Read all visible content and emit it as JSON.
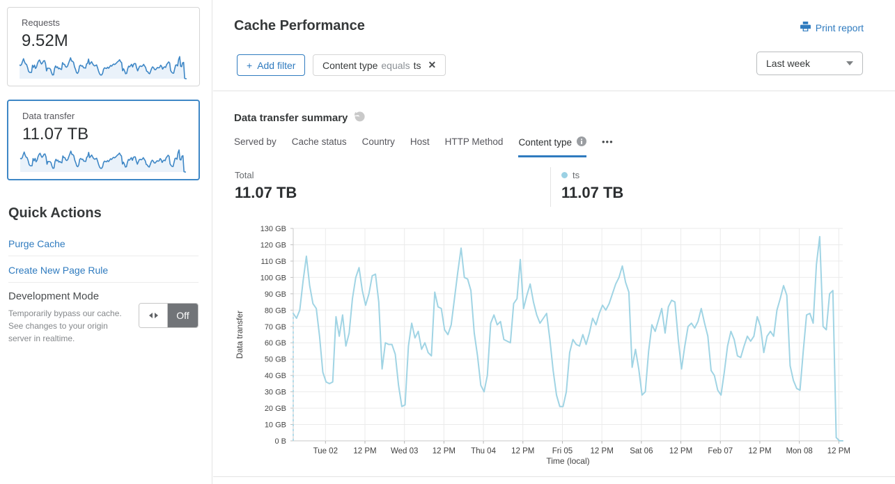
{
  "sidebar": {
    "requests_card": {
      "label": "Requests",
      "value": "9.52M"
    },
    "data_transfer_card": {
      "label": "Data transfer",
      "value": "11.07 TB"
    },
    "quick_actions": {
      "title": "Quick Actions",
      "links": [
        "Purge Cache",
        "Create New Page Rule"
      ],
      "development_mode": {
        "label": "Development Mode",
        "description": "Temporarily bypass our cache. See changes to your origin server in realtime.",
        "toggle_state": "Off"
      }
    }
  },
  "header": {
    "title": "Cache Performance",
    "print_report_label": "Print report",
    "add_filter_plus": "+",
    "add_filter_label": "Add filter",
    "filter_chip": {
      "field": "Content type",
      "operator": "equals",
      "value": "ts",
      "close_icon": "✕"
    },
    "time_range_value": "Last week"
  },
  "summary": {
    "title": "Data transfer summary",
    "tabs": [
      "Served by",
      "Cache status",
      "Country",
      "Host",
      "HTTP Method",
      "Content type"
    ],
    "active_tab": "Content type",
    "more_icon": "•••",
    "total_label": "Total",
    "total_value": "11.07 TB",
    "legend": {
      "name": "ts",
      "value": "11.07 TB",
      "color": "#9bd1e4"
    }
  },
  "colors": {
    "accent_blue": "#2f7bbf",
    "chart_line": "#a0d4e4",
    "sparkline": "#3e87c6",
    "selected_card_border": "#3e87c6"
  },
  "chart_data": {
    "type": "line",
    "title": "Data transfer summary",
    "xlabel": "Time (local)",
    "ylabel": "Data transfer",
    "ylim": [
      0,
      130
    ],
    "y_unit": "GB",
    "grid": true,
    "start_dashed": true,
    "legend_position": "top",
    "y_tick_labels": [
      "0 B",
      "10 GB",
      "20 GB",
      "30 GB",
      "40 GB",
      "50 GB",
      "60 GB",
      "70 GB",
      "80 GB",
      "90 GB",
      "100 GB",
      "110 GB",
      "120 GB",
      "130 GB"
    ],
    "x_tick_labels": [
      "Tue 02",
      "12 PM",
      "Wed 03",
      "12 PM",
      "Thu 04",
      "12 PM",
      "Fri 05",
      "12 PM",
      "Sat 06",
      "12 PM",
      "Feb 07",
      "12 PM",
      "Mon 08",
      "12 PM"
    ],
    "x_tick_indices": [
      9.8,
      21.8,
      33.8,
      45.8,
      57.8,
      69.8,
      81.8,
      93.8,
      105.8,
      117.8,
      129.8,
      141.8,
      153.8,
      165.8
    ],
    "series": [
      {
        "name": "ts",
        "color": "#a0d4e4",
        "unit": "GB",
        "values": [
          78,
          75,
          80,
          98,
          113,
          95,
          84,
          81,
          64,
          42,
          36,
          35,
          36,
          76,
          64,
          77,
          58,
          66,
          87,
          100,
          106,
          92,
          83,
          90,
          101,
          102,
          85,
          44,
          60,
          59,
          59,
          53,
          34,
          21,
          22,
          58,
          72,
          63,
          67,
          56,
          60,
          54,
          52,
          91,
          82,
          81,
          68,
          65,
          71,
          87,
          103,
          118,
          100,
          99,
          92,
          66,
          52,
          34,
          30,
          40,
          72,
          77,
          71,
          73,
          62,
          61,
          60,
          84,
          87,
          111,
          81,
          89,
          96,
          85,
          77,
          72,
          75,
          78,
          62,
          43,
          28,
          21,
          21,
          30,
          54,
          62,
          59,
          58,
          65,
          59,
          66,
          75,
          71,
          78,
          83,
          80,
          84,
          90,
          96,
          100,
          107,
          97,
          91,
          45,
          56,
          44,
          28,
          30,
          55,
          71,
          67,
          74,
          81,
          66,
          82,
          86,
          85,
          62,
          44,
          58,
          70,
          72,
          69,
          73,
          81,
          72,
          64,
          43,
          40,
          31,
          28,
          42,
          58,
          67,
          62,
          52,
          51,
          58,
          64,
          61,
          64,
          76,
          70,
          54,
          64,
          67,
          64,
          80,
          87,
          95,
          89,
          46,
          37,
          32,
          31,
          55,
          77,
          78,
          72,
          108,
          125,
          70,
          68,
          90,
          92,
          2,
          0,
          0
        ]
      }
    ]
  }
}
